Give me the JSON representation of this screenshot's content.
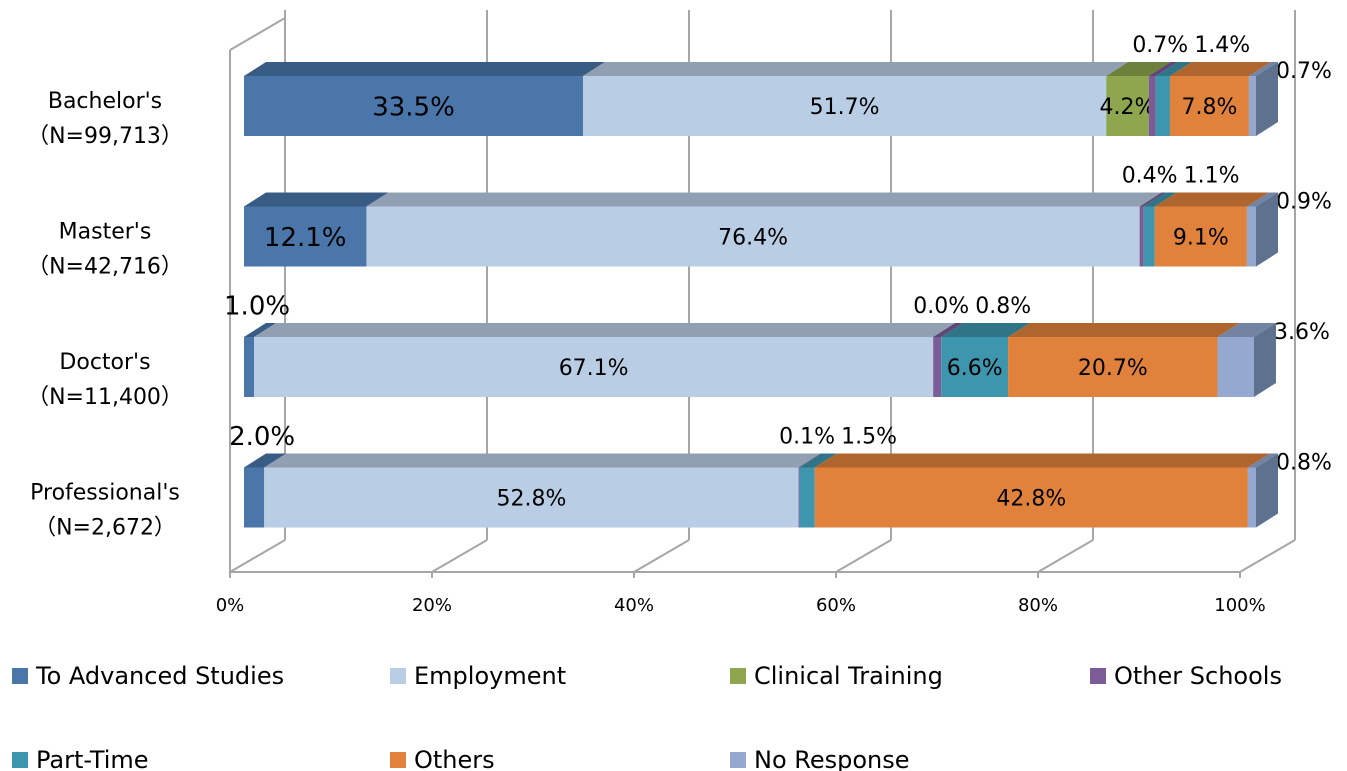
{
  "chart_data": {
    "type": "stacked-bar-3d",
    "categories": [
      "Bachelor's\n（N=99,713）",
      "Master's\n（N=42,716）",
      "Doctor's\n（N=11,400）",
      "Professional's\n（N=2,672）"
    ],
    "series": [
      {
        "name": "To Advanced Studies",
        "color": "#4a76aa",
        "values": [
          33.5,
          12.1,
          1.0,
          2.0
        ],
        "value_labels": [
          "33.5%",
          "12.1%",
          "1.0%",
          "2.0%"
        ]
      },
      {
        "name": "Employment",
        "color": "#b9cde5",
        "values": [
          51.7,
          76.4,
          67.1,
          52.8
        ],
        "value_labels": [
          "51.7%",
          "76.4%",
          "67.1%",
          "52.8%"
        ]
      },
      {
        "name": "Clinical Training",
        "color": "#8ea64e",
        "values": [
          4.2,
          0,
          0.0,
          0
        ],
        "value_labels": [
          "4.2%",
          null,
          "0.0%",
          null
        ]
      },
      {
        "name": "Other Schools",
        "color": "#7b5c96",
        "values": [
          0.7,
          0.4,
          0.8,
          0.1
        ],
        "value_labels": [
          "0.7%",
          "0.4%",
          "0.8%",
          "0.1%"
        ]
      },
      {
        "name": "Part-Time",
        "color": "#3d96ae",
        "values": [
          1.4,
          1.1,
          6.6,
          1.5
        ],
        "value_labels": [
          "1.4%",
          "1.1%",
          "6.6%",
          "1.5%"
        ]
      },
      {
        "name": "Others",
        "color": "#e0823c",
        "values": [
          7.8,
          9.1,
          20.7,
          42.8
        ],
        "value_labels": [
          "7.8%",
          "9.1%",
          "20.7%",
          "42.8%"
        ]
      },
      {
        "name": "No Response",
        "color": "#94a8d0",
        "values": [
          0.7,
          0.9,
          3.6,
          0.8
        ],
        "value_labels": [
          "0.7%",
          "0.9%",
          "3.6%",
          "0.8%"
        ]
      }
    ],
    "xlim": [
      0,
      100
    ],
    "xticks": [
      {
        "value": 0,
        "label": "0%"
      },
      {
        "value": 20,
        "label": "20%"
      },
      {
        "value": 40,
        "label": "40%"
      },
      {
        "value": 60,
        "label": "60%"
      },
      {
        "value": 80,
        "label": "80%"
      },
      {
        "value": 100,
        "label": "100%"
      }
    ],
    "grid": true,
    "legend": "bottom"
  }
}
